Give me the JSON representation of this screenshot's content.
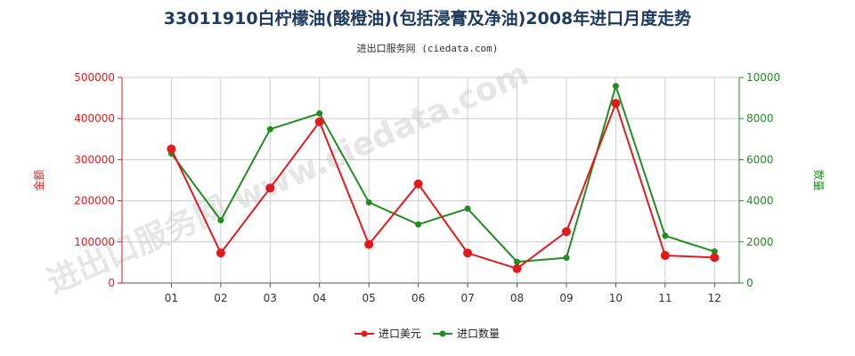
{
  "title": "33011910白柠檬油(酸橙油)(包括浸膏及净油)2008年进口月度走势",
  "subtitle": "进出口服务网 (ciedata.com)",
  "watermark": "进出口服务网 www.ciedata.com",
  "colors": {
    "usd": "#e31a1c",
    "qty": "#228b22",
    "grid": "#cccccc",
    "axis": "#555555"
  },
  "chart_data": {
    "type": "line",
    "categories": [
      "01",
      "02",
      "03",
      "04",
      "05",
      "06",
      "07",
      "08",
      "09",
      "10",
      "11",
      "12"
    ],
    "series": [
      {
        "name": "进口美元",
        "axis": "left",
        "values": [
          326000,
          73000,
          231000,
          392000,
          94000,
          241000,
          73000,
          35000,
          125000,
          437000,
          67000,
          62000
        ]
      },
      {
        "name": "进口数量",
        "axis": "right",
        "values": [
          6300,
          3050,
          7480,
          8250,
          3920,
          2850,
          3620,
          1030,
          1230,
          9580,
          2300,
          1530
        ]
      }
    ],
    "yleft": {
      "label": "金额",
      "ylim": [
        0,
        500000
      ],
      "ticks": [
        "0",
        "100000",
        "200000",
        "300000",
        "400000",
        "500000"
      ]
    },
    "yright": {
      "label": "数量",
      "ylim": [
        0,
        10000
      ],
      "ticks": [
        "0",
        "2000",
        "4000",
        "6000",
        "8000",
        "10000"
      ]
    },
    "grid": true,
    "legend": "bottom-center"
  }
}
